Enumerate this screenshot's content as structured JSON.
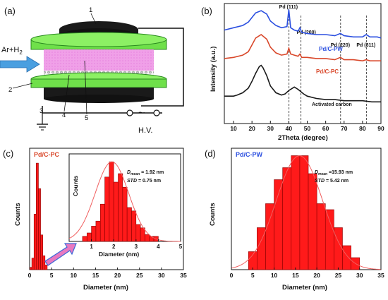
{
  "panels": {
    "a": "(a)",
    "b": "(b)",
    "c": "(c)",
    "d": "(d)"
  },
  "schematic": {
    "gas_label": "Ar+H",
    "gas_sub": "2",
    "numbers": [
      "1",
      "2",
      "3",
      "4",
      "5"
    ],
    "hv_label": "H.V.",
    "tilde": "~",
    "colors": {
      "electrode": "#1a1a1a",
      "dielectric": "#6fe04a",
      "plasma": "#f0a0e8",
      "arrow": "#4a9fe0"
    }
  },
  "chart_data": [
    {
      "id": "b",
      "type": "line",
      "xlabel": "2Theta (degree)",
      "ylabel": "Intensity (a.u.)",
      "xlim": [
        5,
        90
      ],
      "xticks": [
        10,
        20,
        30,
        40,
        50,
        60,
        70,
        80,
        90
      ],
      "series": [
        {
          "name": "Pd/C-PW",
          "color": "#2b4fe0",
          "x": [
            5,
            10,
            15,
            18,
            20,
            22,
            25,
            28,
            30,
            33,
            36,
            39,
            40,
            41,
            43,
            45,
            46,
            47,
            50,
            55,
            60,
            65,
            68,
            70,
            75,
            80,
            82,
            84,
            88,
            90
          ],
          "y": [
            0.82,
            0.84,
            0.86,
            0.89,
            0.93,
            0.97,
            0.99,
            0.96,
            0.9,
            0.86,
            0.84,
            0.85,
            1.0,
            0.84,
            0.82,
            0.81,
            0.84,
            0.8,
            0.79,
            0.78,
            0.78,
            0.77,
            0.79,
            0.77,
            0.76,
            0.76,
            0.78,
            0.76,
            0.76,
            0.75
          ]
        },
        {
          "name": "Pd/C-PC",
          "color": "#d9482b",
          "x": [
            5,
            10,
            15,
            18,
            20,
            22,
            25,
            28,
            30,
            33,
            36,
            39,
            40,
            41,
            43,
            45,
            46,
            47,
            50,
            55,
            60,
            65,
            68,
            70,
            75,
            80,
            82,
            84,
            88,
            90
          ],
          "y": [
            0.57,
            0.58,
            0.6,
            0.63,
            0.69,
            0.75,
            0.78,
            0.74,
            0.67,
            0.62,
            0.6,
            0.61,
            0.66,
            0.61,
            0.6,
            0.59,
            0.61,
            0.58,
            0.58,
            0.57,
            0.57,
            0.56,
            0.58,
            0.56,
            0.56,
            0.55,
            0.56,
            0.55,
            0.55,
            0.55
          ]
        },
        {
          "name": "Activated carbon",
          "color": "#1a1a1a",
          "x": [
            5,
            8,
            10,
            12,
            15,
            18,
            20,
            22,
            24,
            25,
            26,
            28,
            30,
            33,
            36,
            38,
            40,
            42,
            43,
            45,
            48,
            50,
            55,
            60,
            65,
            70,
            75,
            80,
            85,
            90
          ],
          "y": [
            0.24,
            0.24,
            0.24,
            0.25,
            0.27,
            0.31,
            0.37,
            0.44,
            0.5,
            0.51,
            0.49,
            0.42,
            0.33,
            0.27,
            0.25,
            0.26,
            0.29,
            0.31,
            0.32,
            0.3,
            0.26,
            0.24,
            0.22,
            0.21,
            0.21,
            0.2,
            0.2,
            0.2,
            0.19,
            0.19
          ]
        }
      ],
      "annotations": [
        {
          "text": "Pd (111)",
          "x": 40.1
        },
        {
          "text": "Pd (200)",
          "x": 46.6
        },
        {
          "text": "Pd (220)",
          "x": 68.1
        },
        {
          "text": "Pd (311)",
          "x": 82.1
        }
      ]
    },
    {
      "id": "c",
      "type": "bar",
      "legend": "Pd/C-PC",
      "xlabel": "Diameter (nm)",
      "ylabel": "Counts",
      "xlim": [
        0,
        35
      ],
      "xticks": [
        0,
        5,
        10,
        15,
        20,
        25,
        30,
        35
      ],
      "bins": [
        0.0,
        0.5,
        1.0,
        1.5,
        2.0,
        2.5,
        3.0,
        3.5
      ],
      "bin_width": 0.5,
      "counts": [
        2,
        10,
        48,
        92,
        70,
        30,
        12,
        4
      ],
      "ylim": [
        0,
        100
      ],
      "inset": {
        "xlabel": "Diameter (nm)",
        "ylabel": "Counts",
        "xlim": [
          0,
          5
        ],
        "xticks": [
          1,
          2,
          3,
          4,
          5
        ],
        "bin_starts": [
          0.6,
          0.8,
          1.0,
          1.2,
          1.4,
          1.6,
          1.8,
          2.0,
          2.2,
          2.4,
          2.6,
          2.8,
          3.0,
          3.2,
          3.4,
          3.6,
          3.8
        ],
        "bin_width": 0.2,
        "counts": [
          3,
          5,
          9,
          12,
          22,
          38,
          47,
          35,
          40,
          32,
          20,
          18,
          10,
          8,
          4,
          3,
          3
        ],
        "ylim": [
          0,
          50
        ],
        "stats": {
          "mean_label": "D",
          "mean_sub": "mean",
          "mean_value": " = 1.92 nm",
          "std_label": "STD",
          "std_value": " = 0.75 nm"
        }
      }
    },
    {
      "id": "d",
      "type": "bar",
      "legend": "Pd/C-PW",
      "xlabel": "Diameter (nm)",
      "ylabel": "Counts",
      "xlim": [
        0,
        35
      ],
      "xticks": [
        0,
        5,
        10,
        15,
        20,
        25,
        30,
        35
      ],
      "bin_starts": [
        4,
        6,
        8,
        10,
        12,
        14,
        16,
        18,
        20,
        22,
        24,
        26,
        28
      ],
      "bin_width": 2,
      "counts": [
        3,
        7,
        11,
        15,
        17,
        19,
        19,
        16,
        11,
        10,
        7,
        4,
        2
      ],
      "ylim": [
        0,
        20
      ],
      "stats": {
        "mean_label": "D",
        "mean_sub": "mean",
        "mean_value": " =15.93 nm",
        "std_label": "STD",
        "std_value": " = 5.42 nm"
      }
    }
  ]
}
